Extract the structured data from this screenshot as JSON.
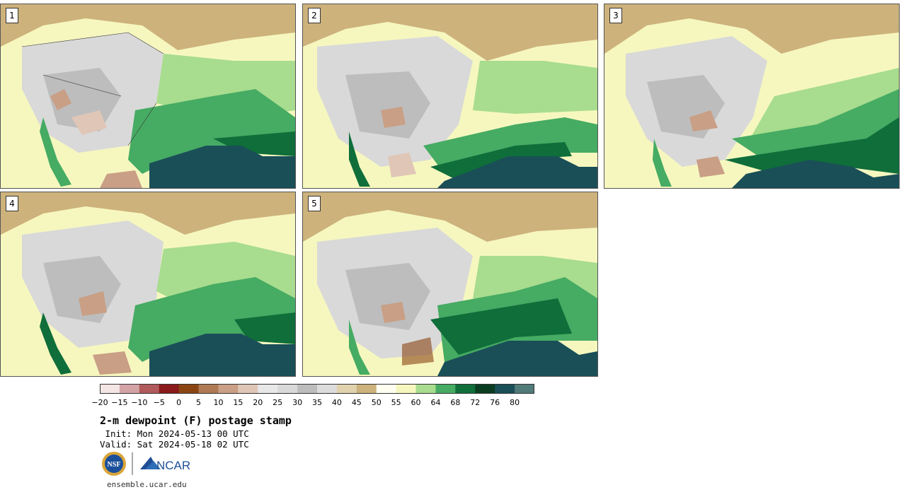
{
  "panels": [
    {
      "label": "1"
    },
    {
      "label": "2"
    },
    {
      "label": "3"
    },
    {
      "label": "4"
    },
    {
      "label": "5"
    }
  ],
  "colorbar": {
    "ticks": [
      "−20",
      "−15",
      "−10",
      "−5",
      "0",
      "5",
      "10",
      "15",
      "20",
      "25",
      "30",
      "35",
      "40",
      "45",
      "50",
      "55",
      "60",
      "64",
      "68",
      "72",
      "76",
      "80"
    ],
    "colors": [
      "#f4e6e4",
      "#d4a3a6",
      "#b05a5c",
      "#8b1a1a",
      "#8b4513",
      "#b07a55",
      "#c99f85",
      "#e0c6b6",
      "#e8e8e8",
      "#d9d9d9",
      "#bdbdbd",
      "#dcdcdc",
      "#e0d2ad",
      "#cdb27c",
      "#fffef0",
      "#f6f7bf",
      "#a8dc8e",
      "#46ab63",
      "#0f6e3a",
      "#0a3d20",
      "#1a4f58",
      "#517b78"
    ]
  },
  "title": "2-m dewpoint (F) postage stamp",
  "init": " Init: Mon 2024-05-13 00 UTC",
  "valid": "Valid: Sat 2024-05-18 02 UTC",
  "logos": {
    "nsf": "NSF",
    "ncar": "NCAR"
  },
  "url": "ensemble.ucar.edu"
}
